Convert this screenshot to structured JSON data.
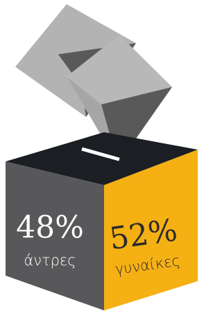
{
  "chart_data": {
    "type": "ballot-box",
    "categories": [
      "άντρες",
      "γυναίκες"
    ],
    "values": [
      48,
      52
    ],
    "value_labels": [
      "48%",
      "52%"
    ],
    "colors": [
      "#58585a",
      "#f5b014"
    ]
  }
}
